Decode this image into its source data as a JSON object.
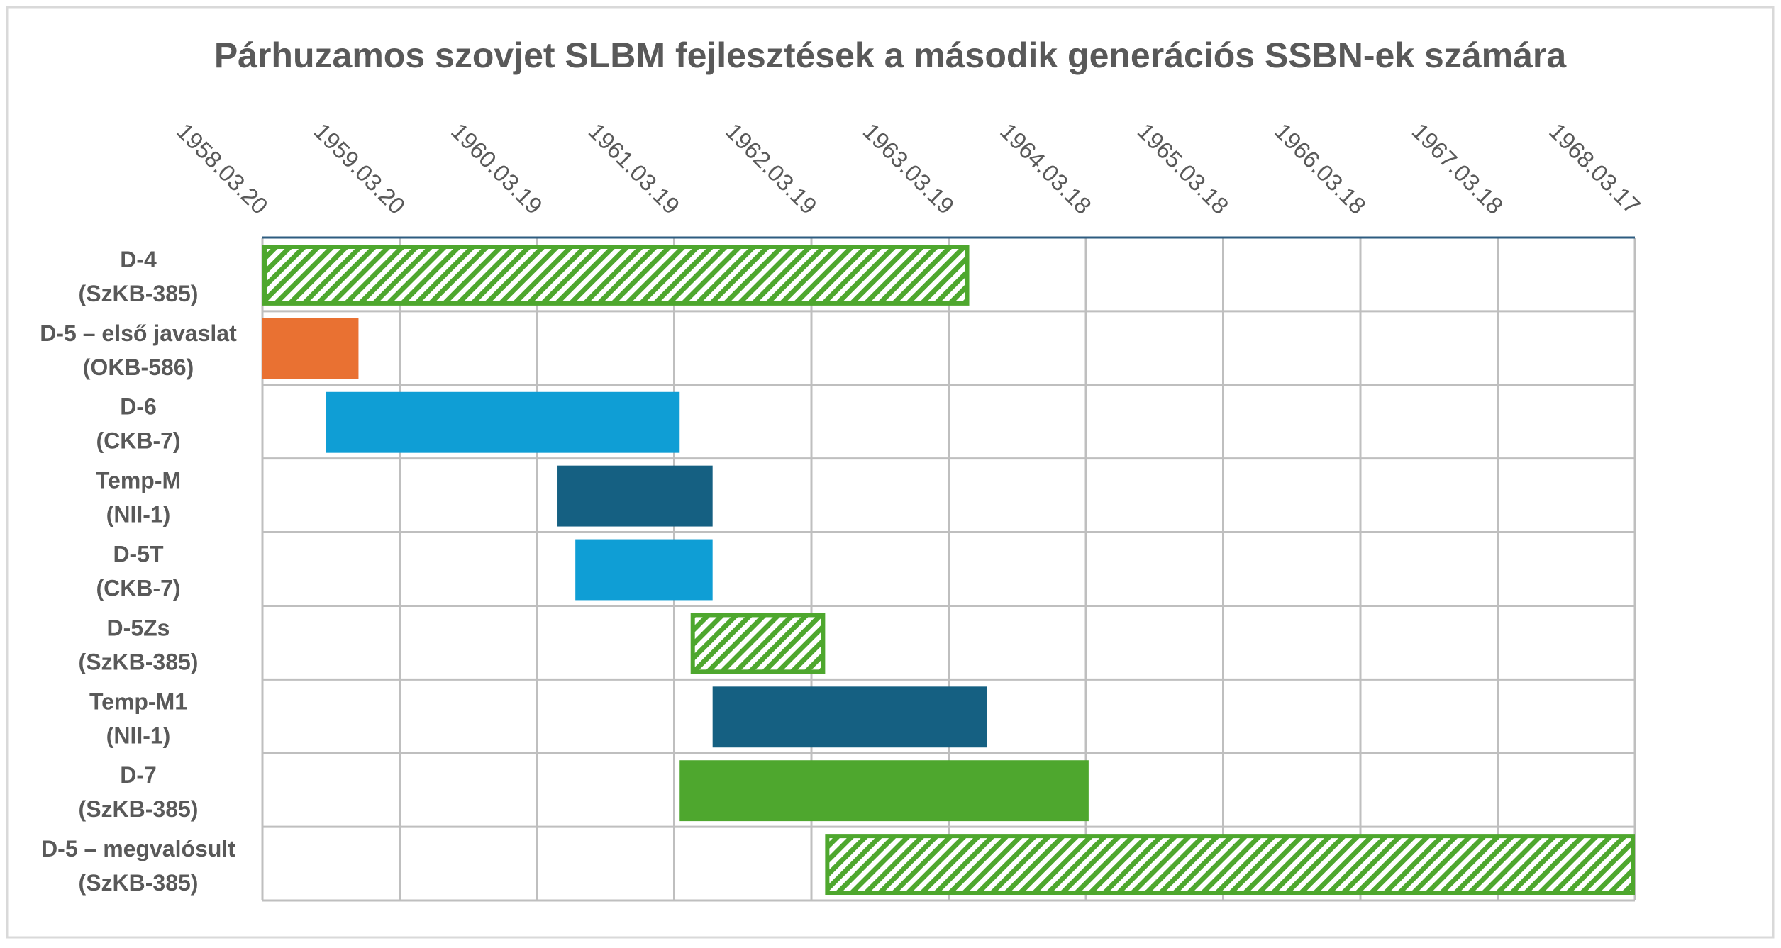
{
  "chart_data": {
    "type": "gantt",
    "title": "Párhuzamos szovjet SLBM fejlesztések a második generációs SSBN-ek számára",
    "x_axis": {
      "tick_labels": [
        "1958.03.20",
        "1959.03.20",
        "1960.03.19",
        "1961.03.19",
        "1962.03.19",
        "1963.03.19",
        "1964.03.18",
        "1965.03.18",
        "1966.03.18",
        "1967.03.18",
        "1968.03.17"
      ],
      "range_years": [
        0,
        10
      ]
    },
    "grid": true,
    "tasks": [
      {
        "label_line1": "D-4",
        "label_line2": "(SzKB-385)",
        "start": 0.0,
        "end": 5.15,
        "style": "hatched",
        "color": "#4ea72e"
      },
      {
        "label_line1": "D-5 – első javaslat",
        "label_line2": "(OKB-586)",
        "start": 0.0,
        "end": 0.7,
        "style": "solid",
        "color": "#e97132"
      },
      {
        "label_line1": "D-6",
        "label_line2": "(CKB-7)",
        "start": 0.46,
        "end": 3.04,
        "style": "solid",
        "color": "#0f9ed5"
      },
      {
        "label_line1": "Temp-M",
        "label_line2": "(NII-1)",
        "start": 2.15,
        "end": 3.28,
        "style": "solid",
        "color": "#156082"
      },
      {
        "label_line1": "D-5T",
        "label_line2": "(CKB-7)",
        "start": 2.28,
        "end": 3.28,
        "style": "solid",
        "color": "#0f9ed5"
      },
      {
        "label_line1": "D-5Zs",
        "label_line2": "(SzKB-385)",
        "start": 3.12,
        "end": 4.1,
        "style": "hatched",
        "color": "#4ea72e"
      },
      {
        "label_line1": "Temp-M1",
        "label_line2": "(NII-1)",
        "start": 3.28,
        "end": 5.28,
        "style": "solid",
        "color": "#156082"
      },
      {
        "label_line1": "D-7",
        "label_line2": "(SzKB-385)",
        "start": 3.04,
        "end": 6.02,
        "style": "solid",
        "color": "#4ea72e"
      },
      {
        "label_line1": "D-5 – megvalósult",
        "label_line2": "(SzKB-385)",
        "start": 4.1,
        "end": 10.0,
        "style": "hatched",
        "color": "#4ea72e"
      }
    ]
  },
  "colors": {
    "title": "#595959",
    "axis_text": "#595959",
    "grid": "#bfbfbf",
    "top_axis": "#2e5c80",
    "frame": "#d9d9d9"
  }
}
